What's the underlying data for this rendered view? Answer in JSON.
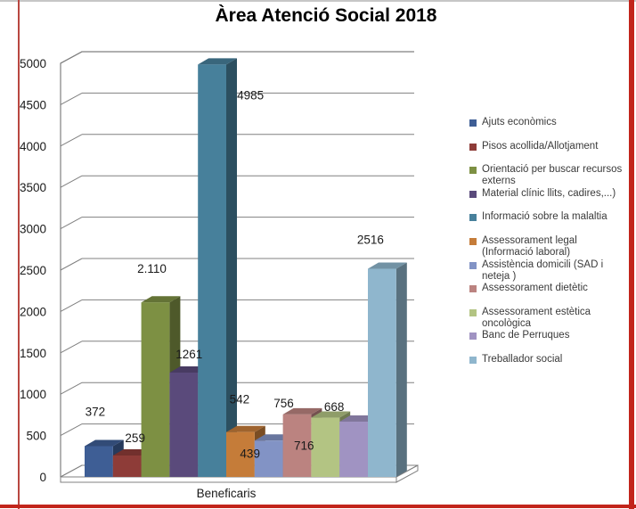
{
  "title": "Àrea Atenció Social 2018",
  "chart_data": {
    "type": "bar",
    "style": "3d-clustered",
    "title": "Àrea Atenció Social 2018",
    "categories": [
      "Beneficaris"
    ],
    "ylim": [
      0,
      5000
    ],
    "ytick_interval": 500,
    "ytick_labels": [
      "0",
      "500",
      "1000",
      "1500",
      "2000",
      "2500",
      "3000",
      "3500",
      "4000",
      "4500",
      "5000"
    ],
    "grid": true,
    "legend_position": "right",
    "series": [
      {
        "name": "Ajuts econòmics",
        "value": 372,
        "label": "372",
        "color": "#3E5E95"
      },
      {
        "name": "Pisos acollida/Allotjament",
        "value": 259,
        "label": "259",
        "color": "#8E3C38"
      },
      {
        "name": "Orientació per buscar recursos externs",
        "value": 2110,
        "label": "2.110",
        "color": "#7D9043"
      },
      {
        "name": "Material clínic llits, cadires,...)",
        "value": 1261,
        "label": "1261",
        "color": "#5A4A7B"
      },
      {
        "name": "Informació sobre la malaltia",
        "value": 4985,
        "label": "4985",
        "color": "#47809B"
      },
      {
        "name": "Assessorament legal (Informació laboral)",
        "value": 542,
        "label": "542",
        "color": "#C57C39"
      },
      {
        "name": "Assistència domicili (SAD i neteja )",
        "value": 439,
        "label": "439",
        "color": "#8293C5"
      },
      {
        "name": "Assessorament dietètic",
        "value": 756,
        "label": "756",
        "color": "#BB8380"
      },
      {
        "name": "Assessorament estètica oncològica",
        "value": 716,
        "label": "716",
        "color": "#B3C483"
      },
      {
        "name": "Banc de Perruques",
        "value": 668,
        "label": "668",
        "color": "#A093C2"
      },
      {
        "name": "Treballador social",
        "value": 2516,
        "label": "2516",
        "color": "#8FB6CD"
      }
    ]
  },
  "accents": {
    "page_border_red": "#C2251B",
    "page_border_left_red": "#B94741",
    "top_line_gray": "#C6C6C6",
    "axis_line_gray": "#808080"
  }
}
